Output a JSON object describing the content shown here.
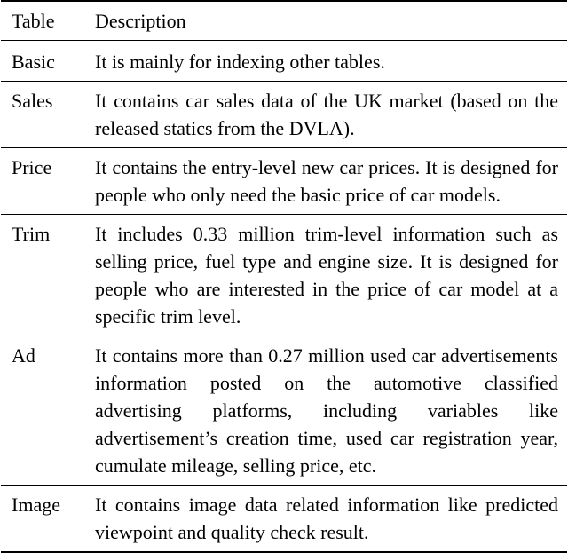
{
  "table": {
    "headers": [
      "Table",
      "Description"
    ],
    "rows": [
      {
        "name": "Basic",
        "description": "It is mainly for indexing other tables."
      },
      {
        "name": "Sales",
        "description": "It contains car sales data of the UK market (based on the released statics from the DVLA)."
      },
      {
        "name": "Price",
        "description": "It contains the entry-level new car prices. It is de­signed for people who only need the basic price of car models."
      },
      {
        "name": "Trim",
        "description": "It includes 0.33 million trim-level information such as selling price, fuel type and engine size. It is designed for people who are interested in the price of car model at a specific trim level."
      },
      {
        "name": "Ad",
        "description": "It contains more than 0.27 million used car advertise­ments information posted on the automotive classi­fied advertising platforms, including variables like advertisement’s creation time, used car registration year, cumulate mileage, selling price, etc."
      },
      {
        "name": "Image",
        "description": "It contains image data related information like pre­dicted viewpoint and quality check result."
      }
    ]
  }
}
